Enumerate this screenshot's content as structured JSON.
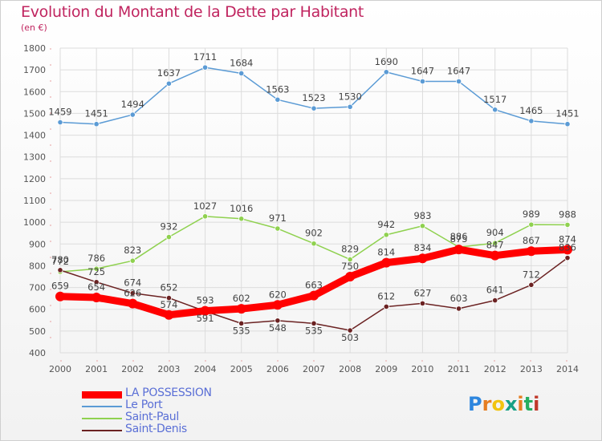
{
  "title": "Evolution du Montant de la Dette par Habitant",
  "subtitle": "(en €)",
  "logo": {
    "text": "Proxiti",
    "colors": [
      "#2e86de",
      "#e67e22",
      "#f1c40f",
      "#16a085",
      "#e67e22",
      "#27ae60",
      "#c0392b"
    ]
  },
  "chart_data": {
    "type": "line",
    "categories": [
      "2000",
      "2001",
      "2002",
      "2003",
      "2004",
      "2005",
      "2006",
      "2007",
      "2008",
      "2009",
      "2010",
      "2011",
      "2012",
      "2013",
      "2014"
    ],
    "ylim": [
      400,
      1800
    ],
    "yticks": [
      400,
      500,
      600,
      700,
      800,
      900,
      1000,
      1100,
      1200,
      1300,
      1400,
      1500,
      1600,
      1700,
      1800
    ],
    "grid": true,
    "legend_position": "bottom-left",
    "series": [
      {
        "name": "Le Port",
        "color": "#5b9bd5",
        "values": [
          1459,
          1451,
          1494,
          1637,
          1711,
          1684,
          1563,
          1523,
          1530,
          1690,
          1647,
          1647,
          1517,
          1465,
          1451
        ]
      },
      {
        "name": "Saint-Paul",
        "color": "#8fd14f",
        "values": [
          772,
          786,
          823,
          932,
          1027,
          1016,
          971,
          902,
          829,
          942,
          983,
          886,
          904,
          989,
          988
        ]
      },
      {
        "name": "Saint-Denis",
        "color": "#6b2222",
        "values": [
          780,
          725,
          674,
          652,
          591,
          535,
          548,
          535,
          503,
          612,
          627,
          603,
          641,
          712,
          836
        ]
      },
      {
        "name": "LA POSSESSION",
        "color": "#ff0000",
        "values": [
          659,
          654,
          626,
          574,
          593,
          602,
          620,
          663,
          750,
          814,
          834,
          875,
          847,
          867,
          874
        ]
      }
    ],
    "labels": {
      "Le Port": [
        "1459",
        "1451",
        "1494",
        "1637",
        "1711",
        "1684",
        "1563",
        "1523",
        "1530",
        "1690",
        "1647",
        "1647",
        "1517",
        "1465",
        "1451"
      ],
      "Saint-Paul": [
        "772",
        "786",
        "823",
        "932",
        "1027",
        "1016",
        "971",
        "902",
        "829",
        "942",
        "983",
        "886",
        "904",
        "989",
        "988"
      ],
      "Saint-Denis": [
        "780",
        "725",
        "674",
        "652",
        "591",
        "535",
        "548",
        "535",
        "503",
        "612",
        "627",
        "603",
        "641",
        "712",
        "836"
      ],
      "LA POSSESSION": [
        "659",
        "654",
        "626",
        "574",
        "593",
        "602",
        "620",
        "663",
        "750",
        "814",
        "834",
        "875",
        "847",
        "867",
        "874"
      ]
    }
  }
}
